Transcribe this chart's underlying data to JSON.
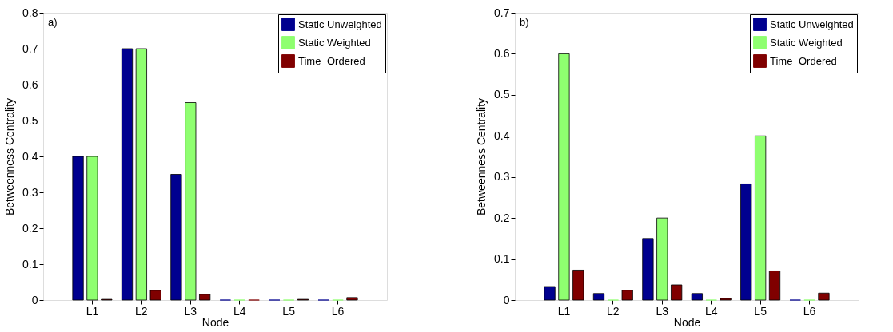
{
  "chart_data": [
    {
      "type": "bar",
      "annotations": [
        "a)"
      ],
      "xlabel": "Node",
      "ylabel": "Betweenness Centrality",
      "categories": [
        "L1",
        "L2",
        "L3",
        "L4",
        "L5",
        "L6"
      ],
      "ylim": [
        0,
        0.8
      ],
      "yticks": [
        0,
        0.1,
        0.2,
        0.3,
        0.4,
        0.5,
        0.6,
        0.7,
        0.8
      ],
      "grid": false,
      "legend": "top right",
      "series": [
        {
          "name": "Static Unweighted",
          "color": "#00008f",
          "values": [
            0.4,
            0.7,
            0.35,
            0,
            0,
            0
          ]
        },
        {
          "name": "Static Weighted",
          "color": "#8fff70",
          "values": [
            0.4,
            0.7,
            0.55,
            0,
            0,
            0
          ]
        },
        {
          "name": "Time−Ordered",
          "color": "#800000",
          "values": [
            0.002,
            0.027,
            0.016,
            0,
            0.002,
            0.007
          ]
        }
      ]
    },
    {
      "type": "bar",
      "annotations": [
        "b)"
      ],
      "xlabel": "Node",
      "ylabel": "Betweenness Centrality",
      "categories": [
        "L1",
        "L2",
        "L3",
        "L4",
        "L5",
        "L6"
      ],
      "ylim": [
        0,
        0.7
      ],
      "yticks": [
        0,
        0.1,
        0.2,
        0.3,
        0.4,
        0.5,
        0.6,
        0.7
      ],
      "grid": false,
      "legend": "top right",
      "series": [
        {
          "name": "Static Unweighted",
          "color": "#00008f",
          "values": [
            0.033,
            0.016,
            0.15,
            0.016,
            0.283,
            0
          ]
        },
        {
          "name": "Static Weighted",
          "color": "#8fff70",
          "values": [
            0.6,
            0,
            0.2,
            0,
            0.4,
            0
          ]
        },
        {
          "name": "Time−Ordered",
          "color": "#800000",
          "values": [
            0.073,
            0.024,
            0.037,
            0.004,
            0.071,
            0.017
          ]
        }
      ]
    }
  ]
}
